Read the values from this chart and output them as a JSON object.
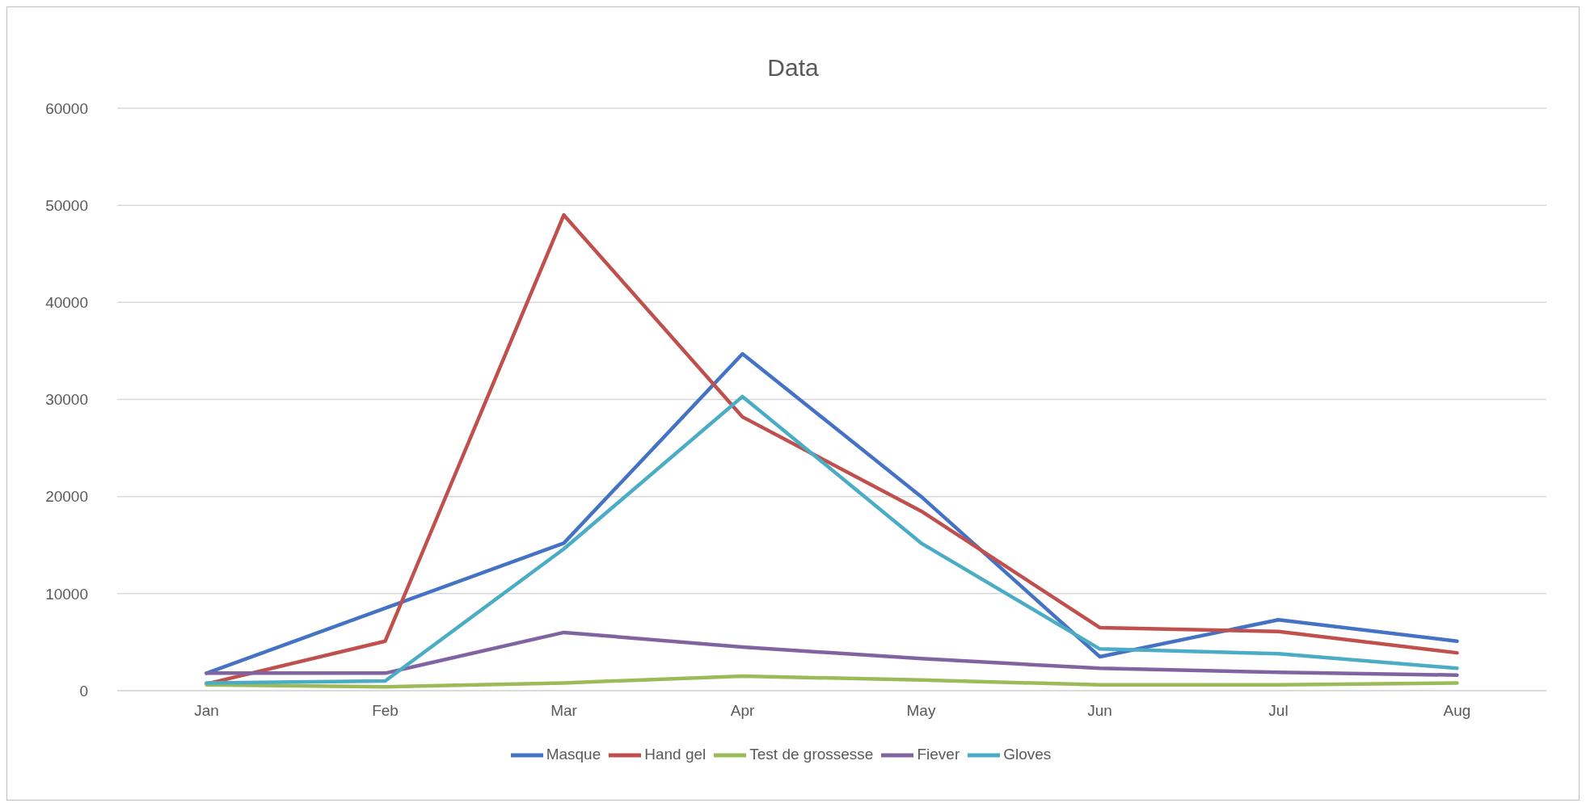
{
  "chart_data": {
    "type": "line",
    "title": "Data",
    "categories": [
      "Jan",
      "Feb",
      "Mar",
      "Apr",
      "May",
      "Jun",
      "Jul",
      "Aug"
    ],
    "series": [
      {
        "name": "Masque",
        "color": "#4472c4",
        "values": [
          1800,
          8500,
          15200,
          34700,
          20000,
          3500,
          7300,
          5100
        ]
      },
      {
        "name": "Hand gel",
        "color": "#c0504d",
        "values": [
          700,
          5100,
          49000,
          28200,
          18500,
          6500,
          6100,
          3900
        ]
      },
      {
        "name": "Test de grossesse",
        "color": "#9bbb59",
        "values": [
          600,
          400,
          800,
          1500,
          1100,
          600,
          600,
          800
        ]
      },
      {
        "name": "Fiever",
        "color": "#8064a2",
        "values": [
          1800,
          1800,
          6000,
          4500,
          3300,
          2300,
          1900,
          1600
        ]
      },
      {
        "name": "Gloves",
        "color": "#4bacc6",
        "values": [
          800,
          1000,
          14600,
          30300,
          15200,
          4300,
          3800,
          2300
        ]
      }
    ],
    "ylim": [
      0,
      60000
    ],
    "yticks": [
      0,
      10000,
      20000,
      30000,
      40000,
      50000,
      60000
    ],
    "grid": "y",
    "legend": "bottom",
    "marker": "none",
    "line_style": "solid"
  }
}
